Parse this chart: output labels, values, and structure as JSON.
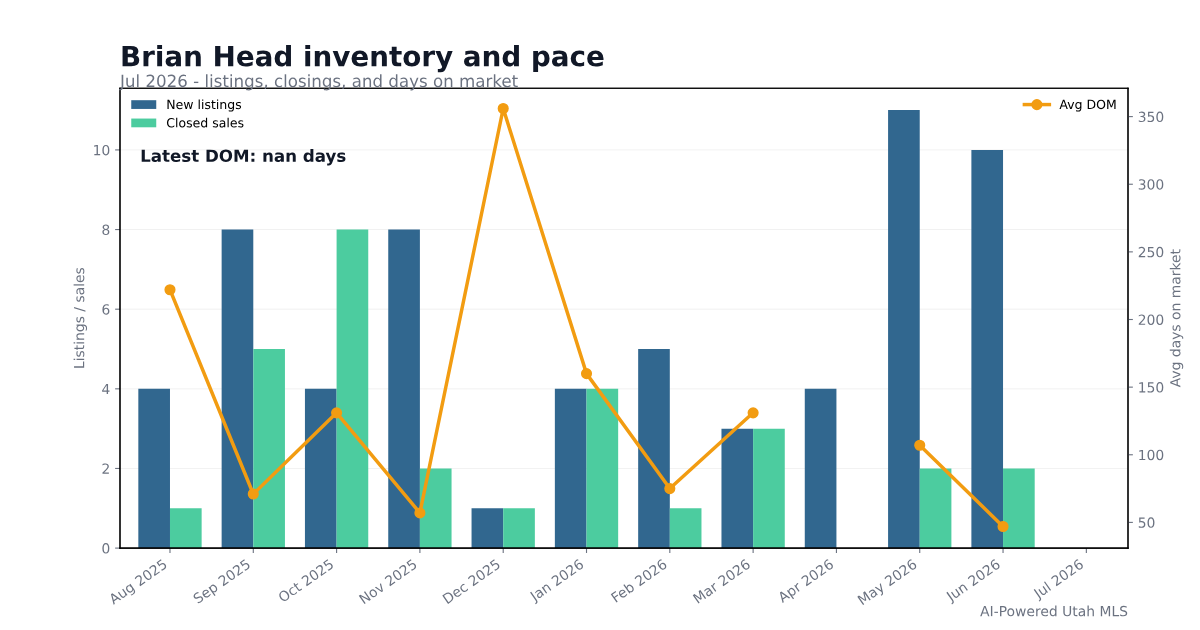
{
  "chart_data": {
    "type": "bar",
    "title": "Brian Head inventory and pace",
    "subtitle": "Jul 2026 - listings, closings, and days on market",
    "ylabel": "Listings / sales",
    "y2label": "Avg days on market",
    "categories": [
      "Aug 2025",
      "Sep 2025",
      "Oct 2025",
      "Nov 2025",
      "Dec 2025",
      "Jan 2026",
      "Feb 2026",
      "Mar 2026",
      "Apr 2026",
      "May 2026",
      "Jun 2026",
      "Jul 2026"
    ],
    "series": [
      {
        "name": "New listings",
        "color": "#31678f",
        "values": [
          4,
          8,
          4,
          8,
          1,
          4,
          5,
          3,
          4,
          11,
          10,
          0
        ]
      },
      {
        "name": "Closed sales",
        "color": "#4ccc9f",
        "values": [
          1,
          5,
          8,
          2,
          1,
          4,
          1,
          3,
          0,
          2,
          2,
          0
        ]
      },
      {
        "name": "Avg DOM",
        "type": "line",
        "axis": "y2",
        "color": "#f29c11",
        "marker": "circle",
        "values": [
          222,
          71,
          131,
          57,
          356,
          160,
          75,
          131,
          null,
          107,
          47,
          null
        ]
      }
    ],
    "ylim": [
      0,
      11.55
    ],
    "yticks": [
      0,
      2,
      4,
      6,
      8,
      10
    ],
    "y2lim": [
      31,
      371
    ],
    "y2ticks": [
      50,
      100,
      150,
      200,
      250,
      300,
      350
    ],
    "grid": "y",
    "legend": "top left",
    "annotations": [
      "Latest DOM: nan days",
      "AI-Powered Utah MLS"
    ]
  }
}
